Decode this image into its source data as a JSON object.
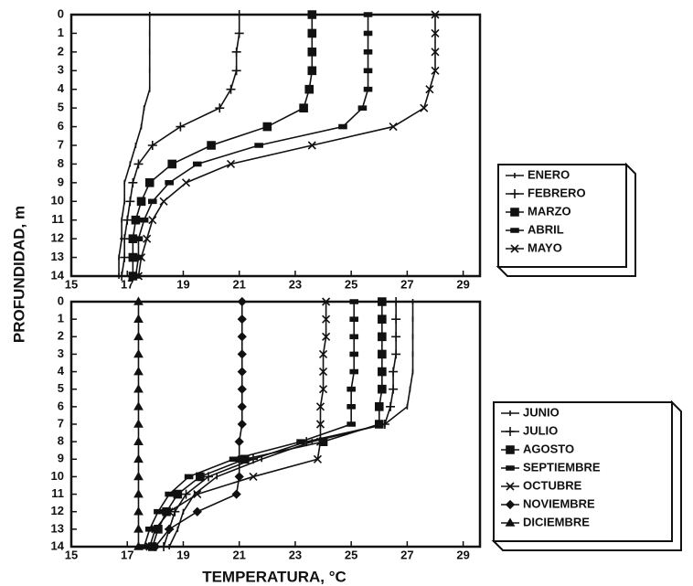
{
  "chart_data": [
    {
      "type": "line",
      "ylabel": "PROFUNDIDAD, m",
      "color": "#111111",
      "categories": [
        0,
        1,
        2,
        3,
        4,
        5,
        6,
        7,
        8,
        9,
        10,
        11,
        12,
        13,
        14
      ],
      "xlim": [
        15,
        29.6
      ],
      "xticks": [
        15,
        17,
        19,
        21,
        23,
        25,
        27,
        29
      ],
      "series": [
        {
          "name": "ENERO",
          "values": [
            17.8,
            17.8,
            17.8,
            17.8,
            17.8,
            17.6,
            17.5,
            17.3,
            17.1,
            16.9,
            16.9,
            16.8,
            16.8,
            16.7,
            16.7
          ]
        },
        {
          "name": "FEBRERO",
          "values": [
            21.0,
            21.0,
            20.9,
            20.9,
            20.7,
            20.3,
            18.9,
            17.9,
            17.4,
            17.2,
            17.1,
            17.0,
            16.9,
            16.9,
            16.8
          ]
        },
        {
          "name": "MARZO",
          "values": [
            23.6,
            23.6,
            23.6,
            23.6,
            23.5,
            23.3,
            22.0,
            20.0,
            18.6,
            17.8,
            17.5,
            17.3,
            17.2,
            17.2,
            17.2
          ]
        },
        {
          "name": "ABRIL",
          "values": [
            25.6,
            25.6,
            25.6,
            25.6,
            25.6,
            25.4,
            24.7,
            21.7,
            19.5,
            18.5,
            17.9,
            17.6,
            17.4,
            17.4,
            17.3
          ]
        },
        {
          "name": "MAYO",
          "values": [
            28.0,
            28.0,
            28.0,
            28.0,
            27.8,
            27.6,
            26.5,
            23.6,
            20.7,
            19.1,
            18.3,
            17.9,
            17.7,
            17.5,
            17.4
          ]
        }
      ]
    },
    {
      "type": "line",
      "xlabel": "TEMPERATURA, °C",
      "color": "#111111",
      "categories": [
        0,
        1,
        2,
        3,
        4,
        5,
        6,
        7,
        8,
        9,
        10,
        11,
        12,
        13,
        14
      ],
      "xlim": [
        15,
        29.6
      ],
      "xticks": [
        15,
        17,
        19,
        21,
        23,
        25,
        27,
        29
      ],
      "series": [
        {
          "name": "JUNIO",
          "values": [
            27.2,
            27.2,
            27.2,
            27.2,
            27.2,
            27.1,
            27.0,
            26.2,
            23.6,
            21.8,
            20.2,
            19.4,
            19.0,
            18.8,
            18.5
          ]
        },
        {
          "name": "JULIO",
          "values": [
            26.6,
            26.6,
            26.6,
            26.6,
            26.5,
            26.5,
            26.4,
            26.2,
            23.4,
            21.5,
            19.9,
            19.1,
            18.7,
            18.5,
            18.3
          ]
        },
        {
          "name": "AGOSTO",
          "values": [
            26.1,
            26.1,
            26.1,
            26.1,
            26.1,
            26.1,
            26.0,
            26.0,
            24.0,
            21.2,
            19.6,
            18.8,
            18.4,
            18.1,
            17.9
          ]
        },
        {
          "name": "SEPTIEMBRE",
          "values": [
            25.1,
            25.1,
            25.1,
            25.1,
            25.1,
            25.0,
            25.0,
            25.0,
            23.2,
            20.8,
            19.2,
            18.5,
            18.1,
            17.8,
            17.6
          ]
        },
        {
          "name": "OCTUBRE",
          "values": [
            24.1,
            24.1,
            24.1,
            24.0,
            24.0,
            24.0,
            23.9,
            23.9,
            23.9,
            23.8,
            21.5,
            19.5,
            18.5,
            18.0,
            17.8
          ]
        },
        {
          "name": "NOVIEMBRE",
          "values": [
            21.1,
            21.1,
            21.1,
            21.1,
            21.1,
            21.1,
            21.1,
            21.1,
            21.0,
            21.0,
            21.0,
            20.9,
            19.5,
            18.5,
            18.0
          ]
        },
        {
          "name": "DICIEMBRE",
          "values": [
            17.4,
            17.4,
            17.4,
            17.4,
            17.4,
            17.4,
            17.4,
            17.4,
            17.4,
            17.4,
            17.4,
            17.4,
            17.4,
            17.4,
            17.4
          ]
        }
      ]
    }
  ]
}
